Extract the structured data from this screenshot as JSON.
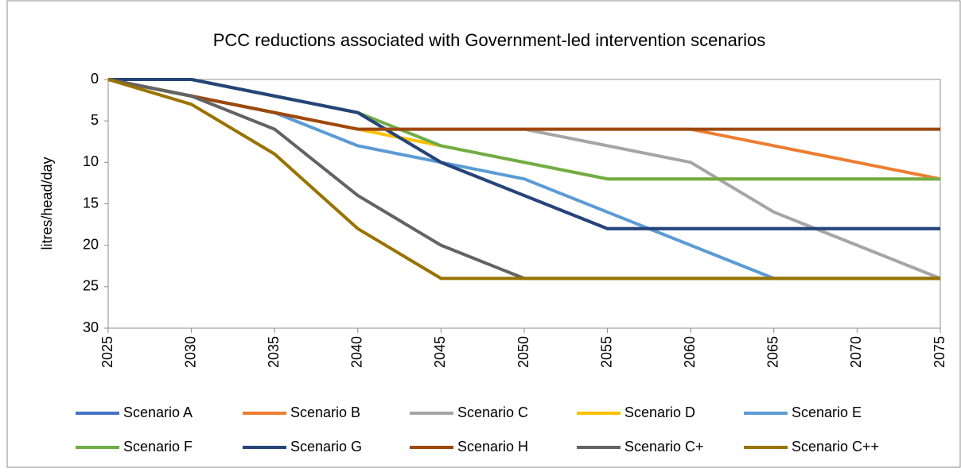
{
  "chart_data": {
    "type": "line",
    "title": "PCC reductions associated with Government-led intervention scenarios",
    "y_label": "litres/head/day",
    "x": [
      2025,
      2030,
      2035,
      2040,
      2045,
      2050,
      2055,
      2060,
      2065,
      2070,
      2075
    ],
    "xlim": [
      2025,
      2075
    ],
    "xticks": [
      2025,
      2030,
      2035,
      2040,
      2045,
      2050,
      2055,
      2060,
      2065,
      2070,
      2075
    ],
    "ylim": [
      0,
      30
    ],
    "yticks": [
      0,
      5,
      10,
      15,
      20,
      25,
      30
    ],
    "y_inverted": true,
    "grid": false,
    "legend": "bottom",
    "series": [
      {
        "name": "Scenario A",
        "color": "#4472c4",
        "values": [
          0,
          0,
          2,
          4,
          10,
          14,
          18,
          18,
          18,
          18,
          18
        ]
      },
      {
        "name": "Scenario B",
        "color": "#ed7d31",
        "values": [
          0,
          2,
          4,
          6,
          6,
          6,
          6,
          6,
          8,
          10,
          12
        ]
      },
      {
        "name": "Scenario C",
        "color": "#a5a5a5",
        "values": [
          0,
          2,
          4,
          6,
          6,
          6,
          8,
          10,
          16,
          20,
          24
        ]
      },
      {
        "name": "Scenario D",
        "color": "#ffc000",
        "values": [
          0,
          2,
          4,
          6,
          8,
          10,
          12,
          12,
          12,
          12,
          12
        ]
      },
      {
        "name": "Scenario E",
        "color": "#5b9bd5",
        "values": [
          0,
          2,
          4,
          8,
          10,
          12,
          16,
          20,
          24,
          24,
          24
        ]
      },
      {
        "name": "Scenario F",
        "color": "#70ad47",
        "values": [
          0,
          0,
          2,
          4,
          8,
          10,
          12,
          12,
          12,
          12,
          12
        ]
      },
      {
        "name": "Scenario G",
        "color": "#264478",
        "values": [
          0,
          0,
          2,
          4,
          10,
          14,
          18,
          18,
          18,
          18,
          18
        ]
      },
      {
        "name": "Scenario H",
        "color": "#9e480e",
        "values": [
          0,
          2,
          4,
          6,
          6,
          6,
          6,
          6,
          6,
          6,
          6
        ]
      },
      {
        "name": "Scenario C+",
        "color": "#636363",
        "values": [
          0,
          2,
          6,
          14,
          20,
          24,
          24,
          24,
          24,
          24,
          24
        ]
      },
      {
        "name": "Scenario C++",
        "color": "#997300",
        "values": [
          0,
          3,
          9,
          18,
          24,
          24,
          24,
          24,
          24,
          24,
          24
        ]
      }
    ]
  }
}
